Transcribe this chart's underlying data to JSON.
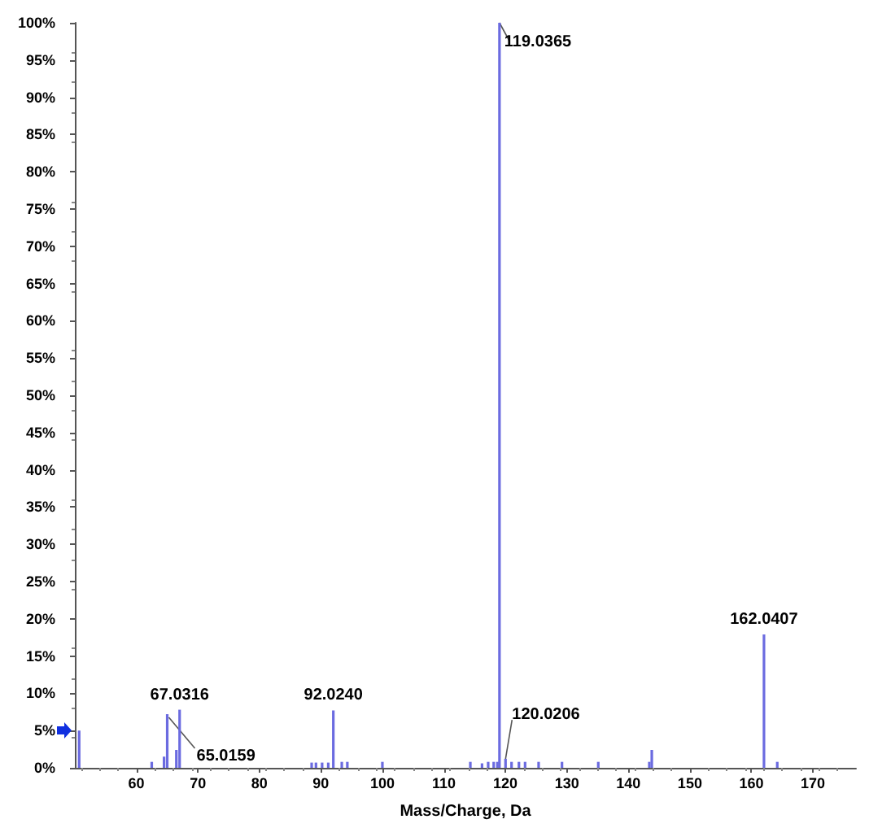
{
  "chart_data": {
    "type": "bar",
    "xlabel": "Mass/Charge, Da",
    "x": [
      50.7,
      62.5,
      64.5,
      65.0159,
      66.5,
      67.0316,
      88.5,
      89.2,
      90.2,
      91.2,
      92.024,
      93.4,
      94.3,
      100,
      114.3,
      116.2,
      117.2,
      118.1,
      118.7,
      119.0365,
      120.0206,
      121,
      122.2,
      123.2,
      125.4,
      129.2,
      135.1,
      143.4,
      143.8,
      162.0407,
      164.2
    ],
    "values": [
      5,
      0.8,
      1.5,
      7.2,
      2.4,
      7.8,
      0.7,
      0.7,
      0.7,
      0.7,
      7.7,
      0.8,
      0.8,
      0.8,
      0.8,
      0.6,
      0.8,
      0.8,
      0.8,
      100,
      1.2,
      0.8,
      0.8,
      0.8,
      0.8,
      0.8,
      0.8,
      0.8,
      2.4,
      17.9,
      0.8
    ],
    "annotations": [
      {
        "text": "65.0159",
        "x": 65.0159,
        "y": 7.2
      },
      {
        "text": "67.0316",
        "x": 67.0316,
        "y": 7.8
      },
      {
        "text": "92.0240",
        "x": 92.024,
        "y": 7.7
      },
      {
        "text": "119.0365",
        "x": 119.0365,
        "y": 100
      },
      {
        "text": "120.0206",
        "x": 120.0206,
        "y": 1.2
      },
      {
        "text": "162.0407",
        "x": 162.0407,
        "y": 17.9
      }
    ],
    "color": "#6b6be0",
    "xlim": [
      50,
      177
    ],
    "xticks": [
      60,
      70,
      80,
      90,
      100,
      110,
      120,
      130,
      140,
      150,
      160,
      170
    ],
    "ylim": [
      0,
      100
    ],
    "yticks": [
      {
        "value": 0,
        "label": "0%"
      },
      {
        "value": 5,
        "label": "5%"
      },
      {
        "value": 10,
        "label": "10%"
      },
      {
        "value": 15,
        "label": "15%"
      },
      {
        "value": 20,
        "label": "20%"
      },
      {
        "value": 25,
        "label": "25%"
      },
      {
        "value": 30,
        "label": "30%"
      },
      {
        "value": 35,
        "label": "35%"
      },
      {
        "value": 40,
        "label": "40%"
      },
      {
        "value": 45,
        "label": "45%"
      },
      {
        "value": 50,
        "label": "50%"
      },
      {
        "value": 55,
        "label": "55%"
      },
      {
        "value": 60,
        "label": "60%"
      },
      {
        "value": 65,
        "label": "65%"
      },
      {
        "value": 70,
        "label": "70%"
      },
      {
        "value": 75,
        "label": "75%"
      },
      {
        "value": 80,
        "label": "80%"
      },
      {
        "value": 85,
        "label": "85%"
      },
      {
        "value": 90,
        "label": "90%"
      },
      {
        "value": 95,
        "label": "95%"
      },
      {
        "value": 100,
        "label": "100%"
      }
    ],
    "grid": false
  }
}
